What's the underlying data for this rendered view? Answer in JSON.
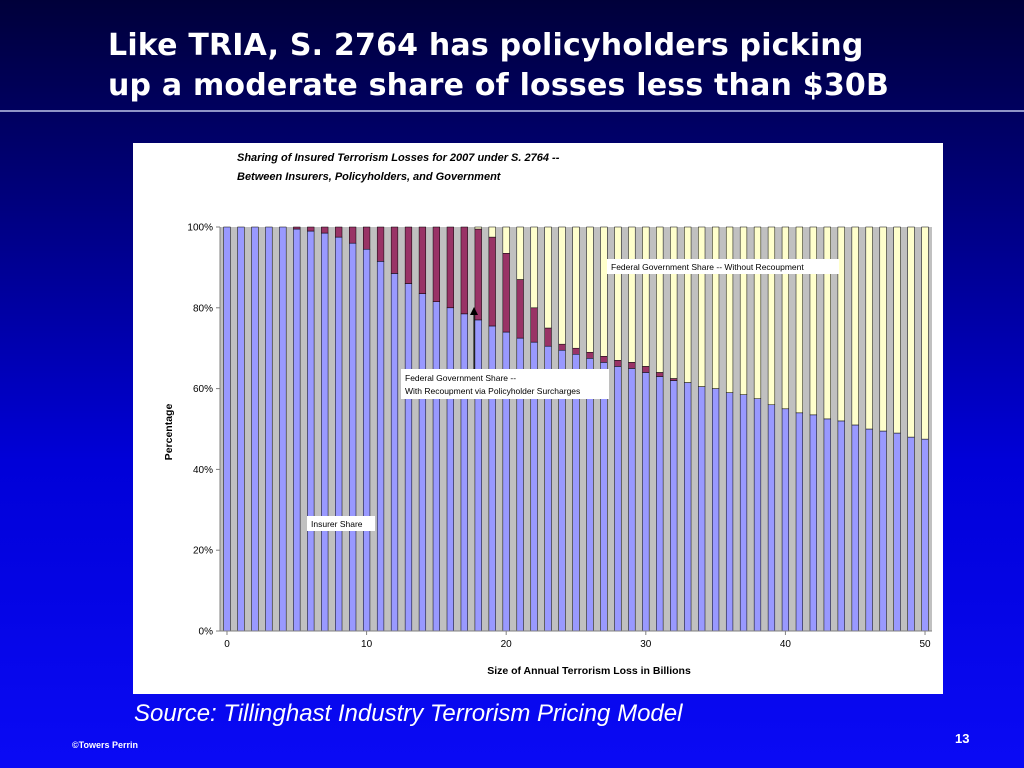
{
  "slide": {
    "title_line1": "Like TRIA, S. 2764 has policyholders picking",
    "title_line2": "up a moderate share of losses less than $30B",
    "source": "Source: Tillinghast Industry Terrorism Pricing Model",
    "copyright": "©Towers Perrin",
    "page_number": "13"
  },
  "colors": {
    "insurer": "#9999ff",
    "policyholder_recoupment": "#993366",
    "government": "#ffffcc",
    "plot_background": "#c0c0c0"
  },
  "chart_data": {
    "type": "bar",
    "stacked": true,
    "normalized_percent": true,
    "title_line1": "Sharing of Insured Terrorism Losses for 2007 under S. 2764 --",
    "title_line2": "Between Insurers, Policyholders, and Government",
    "xlabel": "Size of Annual Terrorism Loss in Billions",
    "ylabel": "Percentage",
    "x_ticks": [
      "0",
      "10",
      "20",
      "30",
      "40",
      "50"
    ],
    "y_ticks": [
      "0%",
      "20%",
      "40%",
      "60%",
      "80%",
      "100%"
    ],
    "ylim": [
      0,
      100
    ],
    "grid": false,
    "x": [
      0,
      1,
      2,
      3,
      4,
      5,
      6,
      7,
      8,
      9,
      10,
      11,
      12,
      13,
      14,
      15,
      16,
      17,
      18,
      19,
      20,
      21,
      22,
      23,
      24,
      25,
      26,
      27,
      28,
      29,
      30,
      31,
      32,
      33,
      34,
      35,
      36,
      37,
      38,
      39,
      40,
      41,
      42,
      43,
      44,
      45,
      46,
      47,
      48,
      49,
      50
    ],
    "series": [
      {
        "key": "insurer",
        "values": [
          100,
          100,
          100,
          100,
          100,
          99.5,
          99,
          98.5,
          97.5,
          96,
          94.5,
          91.5,
          88.5,
          86,
          83.5,
          81.5,
          80,
          78.5,
          77,
          75.5,
          74,
          72.5,
          71.5,
          70.5,
          69.5,
          68.5,
          67.5,
          66.5,
          65.5,
          65,
          64,
          63,
          62,
          61.5,
          60.5,
          60,
          59,
          58.5,
          57.5,
          56,
          55,
          54,
          53.5,
          52.5,
          52,
          51,
          50,
          49.5,
          49,
          48,
          47.5
        ]
      },
      {
        "key": "policyholder",
        "values": [
          0,
          0,
          0,
          0,
          0,
          0.5,
          1,
          1.5,
          2.5,
          4,
          5.5,
          8.5,
          11.5,
          14,
          16.5,
          18.5,
          20,
          21.5,
          22.5,
          22,
          19.5,
          14.5,
          8.5,
          4.5,
          1.5,
          1.5,
          1.5,
          1.5,
          1.5,
          1.5,
          1.5,
          1,
          0.5,
          0,
          0,
          0,
          0,
          0,
          0,
          0,
          0,
          0,
          0,
          0,
          0,
          0,
          0,
          0,
          0,
          0,
          0
        ]
      },
      {
        "key": "government",
        "values": [
          0,
          0,
          0,
          0,
          0,
          0,
          0,
          0,
          0,
          0,
          0,
          0,
          0,
          0,
          0,
          0,
          0,
          0,
          0.5,
          2.5,
          6.5,
          13,
          20,
          25,
          29,
          30,
          31,
          32,
          33,
          33.5,
          34.5,
          36,
          37.5,
          38.5,
          39.5,
          40,
          41,
          41.5,
          42.5,
          44,
          45,
          46,
          46.5,
          47.5,
          48,
          49,
          50,
          50.5,
          51,
          52,
          52.5
        ]
      }
    ],
    "annotations": [
      {
        "text": "Federal Government Share -- Without Recoupment"
      },
      {
        "text_line1": "Federal Government Share --",
        "text_line2": "With Recoupment via Policyholder Surcharges"
      },
      {
        "text": "Insurer Share"
      }
    ]
  }
}
